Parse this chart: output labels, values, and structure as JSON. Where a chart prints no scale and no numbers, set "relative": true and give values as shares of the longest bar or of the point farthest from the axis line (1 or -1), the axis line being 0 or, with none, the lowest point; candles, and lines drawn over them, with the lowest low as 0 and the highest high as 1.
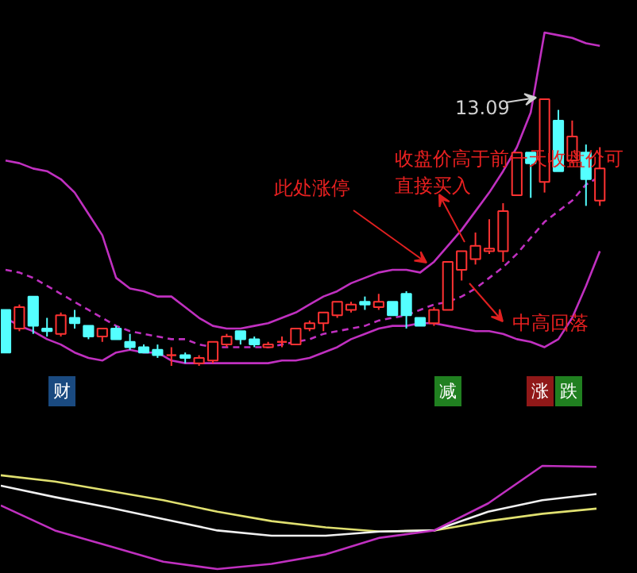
{
  "chart_data": [
    {
      "type": "candlestick",
      "relative": true,
      "categories": [
        null,
        null,
        null,
        null,
        null,
        null,
        null,
        null,
        null,
        null,
        null,
        null,
        null,
        null,
        null,
        null,
        null,
        null,
        null,
        null,
        null,
        null,
        null,
        null,
        null,
        null,
        null,
        null,
        null,
        null,
        null,
        null,
        null,
        null,
        null,
        null,
        null,
        null,
        null,
        null,
        null,
        null,
        null,
        null
      ],
      "ohlc": [
        [
          0.21,
          0.21,
          0.05,
          0.05
        ],
        [
          0.14,
          0.23,
          0.13,
          0.22
        ],
        [
          0.26,
          0.26,
          0.12,
          0.15
        ],
        [
          0.14,
          0.18,
          0.11,
          0.13
        ],
        [
          0.12,
          0.2,
          0.11,
          0.19
        ],
        [
          0.18,
          0.21,
          0.14,
          0.16
        ],
        [
          0.15,
          0.15,
          0.1,
          0.11
        ],
        [
          0.11,
          0.14,
          0.09,
          0.14
        ],
        [
          0.14,
          0.15,
          0.1,
          0.1
        ],
        [
          0.09,
          0.12,
          0.06,
          0.07
        ],
        [
          0.07,
          0.08,
          0.05,
          0.05
        ],
        [
          0.06,
          0.08,
          0.03,
          0.04
        ],
        [
          0.04,
          0.07,
          0.0,
          0.04
        ],
        [
          0.04,
          0.05,
          0.01,
          0.03
        ],
        [
          0.01,
          0.04,
          0.0,
          0.03
        ],
        [
          0.02,
          0.09,
          0.01,
          0.09
        ],
        [
          0.08,
          0.12,
          0.07,
          0.11
        ],
        [
          0.13,
          0.13,
          0.08,
          0.1
        ],
        [
          0.1,
          0.11,
          0.07,
          0.08
        ],
        [
          0.07,
          0.09,
          0.07,
          0.08
        ],
        [
          0.09,
          0.11,
          0.07,
          0.09
        ],
        [
          0.08,
          0.14,
          0.08,
          0.14
        ],
        [
          0.14,
          0.17,
          0.13,
          0.16
        ],
        [
          0.16,
          0.2,
          0.13,
          0.2
        ],
        [
          0.19,
          0.24,
          0.18,
          0.24
        ],
        [
          0.21,
          0.24,
          0.2,
          0.23
        ],
        [
          0.24,
          0.26,
          0.21,
          0.23
        ],
        [
          0.22,
          0.27,
          0.21,
          0.24
        ],
        [
          0.24,
          0.24,
          0.19,
          0.19
        ],
        [
          0.27,
          0.28,
          0.14,
          0.19
        ],
        [
          0.18,
          0.18,
          0.15,
          0.15
        ],
        [
          0.16,
          0.22,
          0.15,
          0.21
        ],
        [
          0.21,
          0.39,
          0.21,
          0.39
        ],
        [
          0.36,
          0.43,
          0.32,
          0.43
        ],
        [
          0.4,
          0.5,
          0.38,
          0.45
        ],
        [
          0.43,
          0.55,
          0.42,
          0.44
        ],
        [
          0.43,
          0.61,
          0.39,
          0.58
        ],
        [
          0.64,
          0.8,
          0.64,
          0.8
        ],
        [
          0.8,
          0.8,
          0.63,
          0.76
        ],
        [
          0.69,
          1.0,
          0.65,
          1.0
        ],
        [
          0.92,
          0.96,
          0.73,
          0.73
        ],
        [
          0.77,
          0.92,
          0.76,
          0.86
        ],
        [
          0.8,
          0.83,
          0.6,
          0.7
        ],
        [
          0.62,
          0.82,
          0.6,
          0.74
        ]
      ],
      "colors": [
        "#54ffff",
        "#ff3232",
        "#54ffff",
        "#54ffff",
        "#ff3232",
        "#54ffff",
        "#54ffff",
        "#ff3232",
        "#54ffff",
        "#54ffff",
        "#54ffff",
        "#54ffff",
        "#ff3232",
        "#54ffff",
        "#ff3232",
        "#ff3232",
        "#ff3232",
        "#54ffff",
        "#54ffff",
        "#ff3232",
        "#ff3232",
        "#ff3232",
        "#ff3232",
        "#ff3232",
        "#ff3232",
        "#ff3232",
        "#54ffff",
        "#ff3232",
        "#54ffff",
        "#54ffff",
        "#54ffff",
        "#ff3232",
        "#ff3232",
        "#ff3232",
        "#ff3232",
        "#ff3232",
        "#ff3232",
        "#ff3232",
        "#54ffff",
        "#ff3232",
        "#54ffff",
        "#ff3232",
        "#54ffff",
        "#ff3232"
      ],
      "series": [
        {
          "type": "line",
          "color": "#c030c0",
          "line_style": "solid",
          "values": [
            0.77,
            0.76,
            0.74,
            0.73,
            0.7,
            0.65,
            0.57,
            0.49,
            0.33,
            0.29,
            0.28,
            0.26,
            0.26,
            0.22,
            0.18,
            0.15,
            0.14,
            0.14,
            0.15,
            0.16,
            0.18,
            0.2,
            0.23,
            0.26,
            0.28,
            0.31,
            0.33,
            0.35,
            0.36,
            0.36,
            0.35,
            0.39,
            0.45,
            0.51,
            0.58,
            0.65,
            0.73,
            0.82,
            0.95,
            1.25,
            1.24,
            1.23,
            1.21,
            1.2
          ]
        },
        {
          "type": "line",
          "color": "#c030c0",
          "line_style": "dashed",
          "values": [
            0.36,
            0.35,
            0.33,
            0.3,
            0.27,
            0.24,
            0.21,
            0.18,
            0.15,
            0.13,
            0.12,
            0.11,
            0.1,
            0.1,
            0.08,
            0.07,
            0.07,
            0.07,
            0.07,
            0.07,
            0.08,
            0.09,
            0.1,
            0.12,
            0.13,
            0.14,
            0.15,
            0.17,
            0.18,
            0.19,
            0.21,
            0.23,
            0.24,
            0.26,
            0.29,
            0.33,
            0.37,
            0.42,
            0.48,
            0.54,
            0.58,
            0.62,
            0.68,
            0.71
          ]
        },
        {
          "type": "line",
          "color": "#c030c0",
          "line_style": "solid",
          "values": [
            0.18,
            0.15,
            0.13,
            0.1,
            0.08,
            0.05,
            0.03,
            0.02,
            0.05,
            0.06,
            0.05,
            0.05,
            0.02,
            0.01,
            0.01,
            0.01,
            0.01,
            0.01,
            0.01,
            0.01,
            0.02,
            0.02,
            0.03,
            0.05,
            0.07,
            0.1,
            0.12,
            0.14,
            0.15,
            0.15,
            0.16,
            0.16,
            0.15,
            0.14,
            0.13,
            0.13,
            0.12,
            0.1,
            0.09,
            0.07,
            0.1,
            0.18,
            0.3,
            0.43
          ]
        }
      ],
      "annotations": [
        "13.09",
        "此处涨停",
        "收盘价高于前一天收盘价可直接买入",
        "中高回落",
        "财",
        "减",
        "涨",
        "跌"
      ]
    },
    {
      "type": "line",
      "relative": true,
      "categories": [
        null,
        null,
        null,
        null,
        null,
        null,
        null,
        null,
        null,
        null,
        null,
        null
      ],
      "series": [
        {
          "color": "#e0e070",
          "values": [
            0.91,
            0.85,
            0.76,
            0.67,
            0.56,
            0.47,
            0.41,
            0.37,
            0.38,
            0.47,
            0.54,
            0.59
          ]
        },
        {
          "color": "#f0f0f0",
          "values": [
            0.81,
            0.7,
            0.6,
            0.49,
            0.38,
            0.33,
            0.33,
            0.37,
            0.38,
            0.56,
            0.67,
            0.73
          ]
        },
        {
          "color": "#c030c0",
          "values": [
            0.62,
            0.38,
            0.23,
            0.08,
            0.01,
            0.06,
            0.15,
            0.31,
            0.38,
            0.64,
            1.0,
            0.99
          ]
        }
      ]
    }
  ]
}
